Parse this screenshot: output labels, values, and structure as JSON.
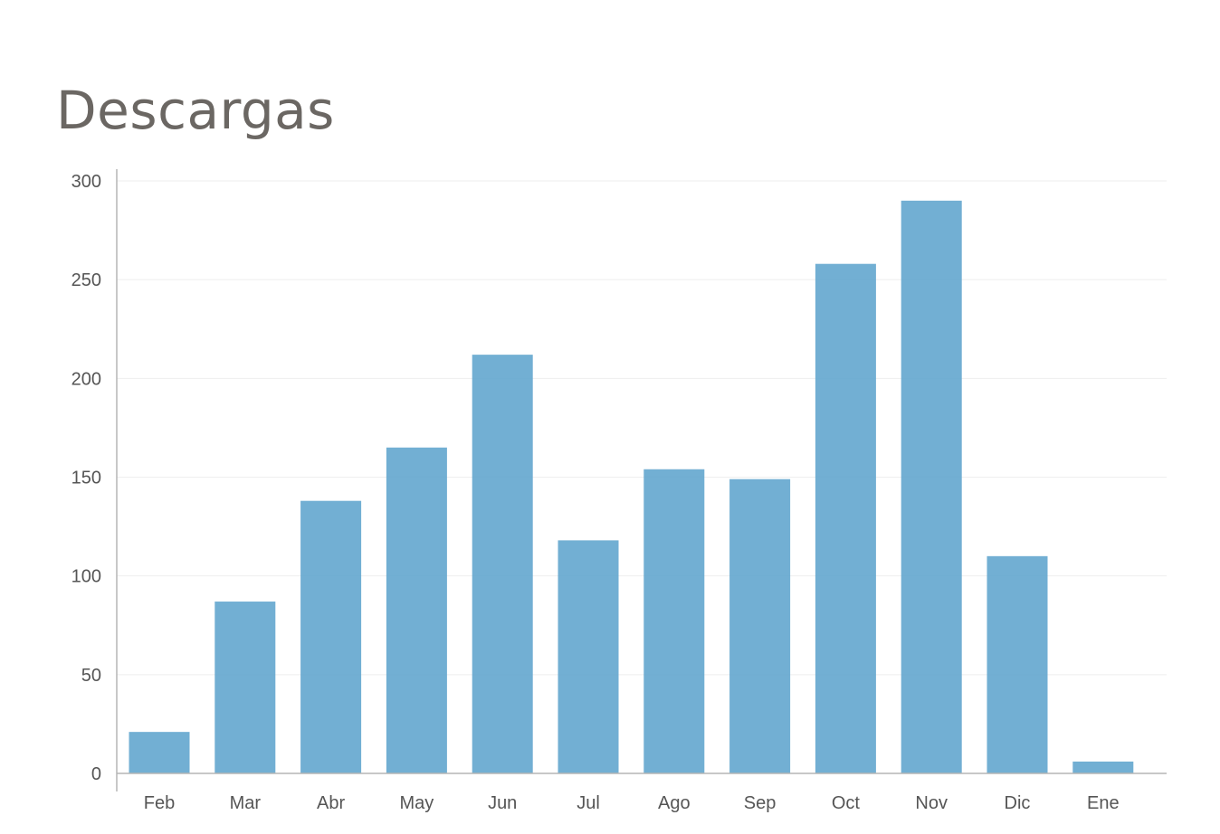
{
  "chart_data": {
    "type": "bar",
    "title": "Descargas",
    "categories": [
      "Feb",
      "Mar",
      "Abr",
      "May",
      "Jun",
      "Jul",
      "Ago",
      "Sep",
      "Oct",
      "Nov",
      "Dic",
      "Ene"
    ],
    "values": [
      21,
      87,
      138,
      165,
      212,
      118,
      154,
      149,
      258,
      290,
      110,
      6
    ],
    "ylim": [
      0,
      300
    ],
    "yticks": [
      0,
      50,
      100,
      150,
      200,
      250,
      300
    ],
    "xlabel": "",
    "ylabel": "",
    "grid": true,
    "color": "#5fa4cd"
  }
}
